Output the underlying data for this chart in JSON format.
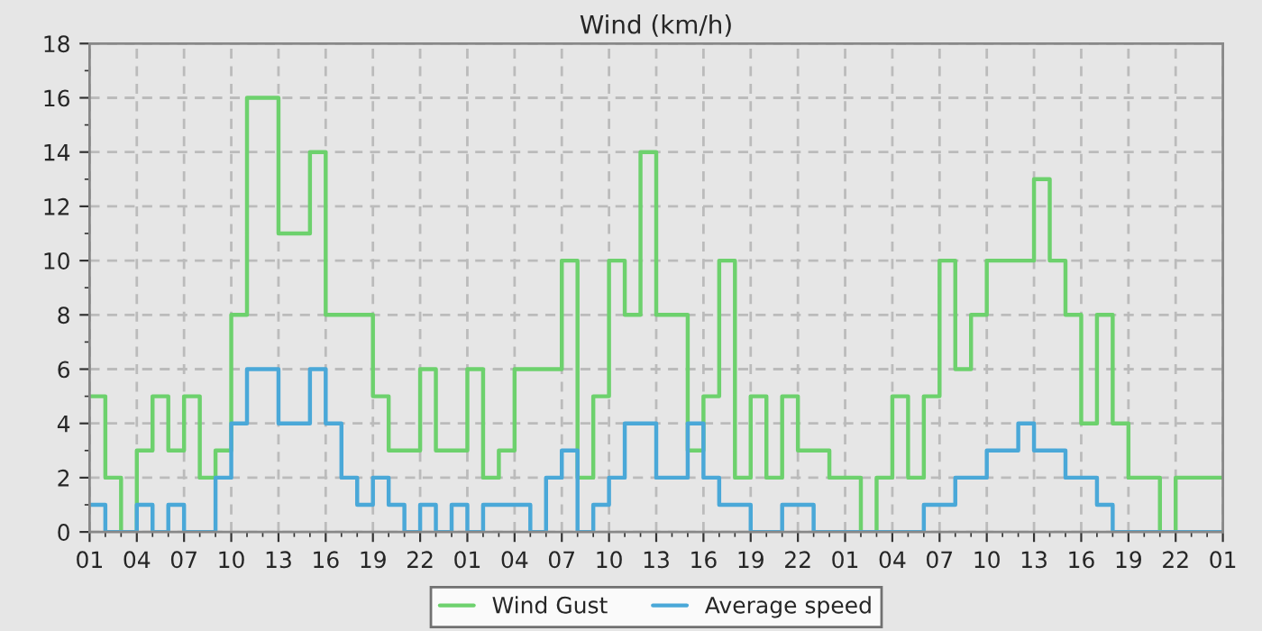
{
  "chart_data": {
    "type": "step",
    "title": "Wind (km/h)",
    "categories": [
      "01",
      null,
      null,
      "04",
      null,
      null,
      "07",
      null,
      null,
      "10",
      null,
      null,
      "13",
      null,
      null,
      "16",
      null,
      null,
      "19",
      null,
      null,
      "22",
      null,
      null,
      "01",
      null,
      null,
      "04",
      null,
      null,
      "07",
      null,
      null,
      "10",
      null,
      null,
      "13",
      null,
      null,
      "16",
      null,
      null,
      "19",
      null,
      null,
      "22",
      null,
      null,
      "01",
      null,
      null,
      "04",
      null,
      null,
      "07",
      null,
      null,
      "10",
      null,
      null,
      "13",
      null,
      null,
      "16",
      null,
      null,
      "19",
      null,
      null,
      "22",
      null,
      null,
      "01"
    ],
    "ylim": [
      0,
      18
    ],
    "yticks": [
      0,
      2,
      4,
      6,
      8,
      10,
      12,
      14,
      16,
      18
    ],
    "grid": true,
    "legend": "bottom",
    "line_style": "solid",
    "marker": "none",
    "series": [
      {
        "name": "Wind Gust",
        "color": "#6dd16d",
        "values": [
          5,
          2,
          0,
          3,
          5,
          3,
          5,
          2,
          3,
          8,
          16,
          16,
          11,
          11,
          14,
          8,
          8,
          8,
          5,
          3,
          3,
          6,
          3,
          3,
          6,
          2,
          3,
          6,
          6,
          6,
          10,
          2,
          5,
          10,
          8,
          14,
          8,
          8,
          3,
          5,
          10,
          2,
          5,
          2,
          5,
          3,
          3,
          2,
          2,
          0,
          2,
          5,
          2,
          5,
          10,
          6,
          8,
          10,
          10,
          10,
          13,
          10,
          8,
          4,
          8,
          4,
          2,
          2,
          0,
          2,
          2,
          2,
          2
        ]
      },
      {
        "name": "Average speed",
        "color": "#4aa8d8",
        "values": [
          1,
          0,
          0,
          1,
          0,
          1,
          0,
          0,
          2,
          4,
          6,
          6,
          4,
          4,
          6,
          4,
          2,
          1,
          2,
          1,
          0,
          1,
          0,
          1,
          0,
          1,
          1,
          1,
          0,
          2,
          3,
          0,
          1,
          2,
          4,
          4,
          2,
          2,
          4,
          2,
          1,
          1,
          0,
          0,
          1,
          1,
          0,
          0,
          0,
          0,
          0,
          0,
          0,
          1,
          1,
          2,
          2,
          3,
          3,
          4,
          3,
          3,
          2,
          2,
          1,
          0,
          0,
          0,
          0,
          0,
          0,
          0,
          0
        ]
      }
    ]
  }
}
